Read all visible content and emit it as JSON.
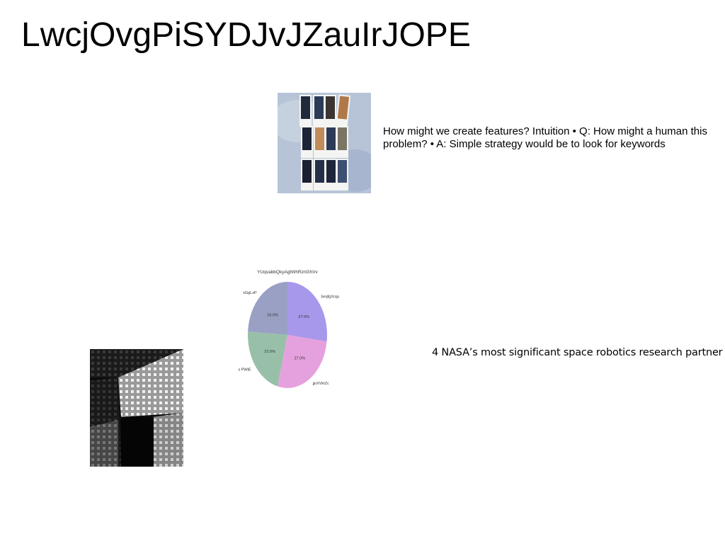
{
  "slide": {
    "title": "LwcjOvgPiSYDJvJZauIrJOPE",
    "text_block_1": "How might we create features? Intuition • Q: How might a human this problem? • A: Simple strategy would be to look for keywords",
    "text_block_2": "4 NASA’s most significant space robotics research partner"
  },
  "images": {
    "top": "polaroid-photos-on-wall",
    "bottom": "black-and-white-building-facade"
  },
  "chart_data": {
    "type": "pie",
    "title": "YUqvabbQkyAgtWhRzriGhVv",
    "labels": [
      "beqfgXrqa",
      "jjoXVkIZc",
      "s PWtE",
      "xGgLxP"
    ],
    "values": [
      27.0,
      27.0,
      22.0,
      24.0
    ],
    "value_labels": [
      "27.0%",
      "27.0%",
      "22.0%",
      "24.0%"
    ],
    "colors": [
      "#a898ec",
      "#e5a1de",
      "#98c0a8",
      "#9aa0c4"
    ],
    "start_angle_deg": 90,
    "direction": "clockwise"
  }
}
